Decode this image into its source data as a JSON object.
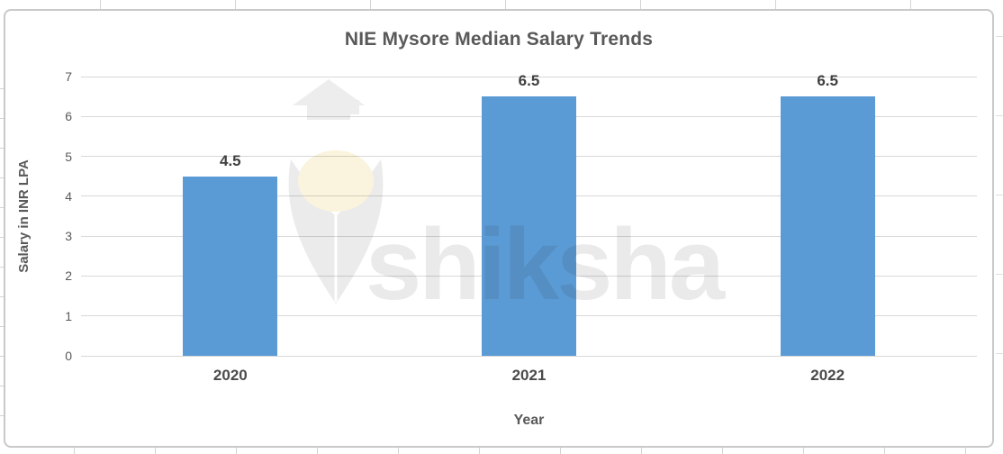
{
  "chart_data": {
    "type": "bar",
    "title": "NIE Mysore Median Salary Trends",
    "categories": [
      "2020",
      "2021",
      "2022"
    ],
    "values": [
      4.5,
      6.5,
      6.5
    ],
    "data_labels": [
      "4.5",
      "6.5",
      "6.5"
    ],
    "xlabel": "Year",
    "ylabel": "Salary in INR LPA",
    "ylim": [
      0,
      7
    ],
    "ytick_step": 1,
    "yticks": [
      "0",
      "1",
      "2",
      "3",
      "4",
      "5",
      "6",
      "7"
    ],
    "grid": true,
    "legend": "none",
    "bar_color": "#5B9BD5"
  },
  "watermark": {
    "text": "shiksha"
  },
  "colors": {
    "bar": "#5B9BD5",
    "title_text": "#595959",
    "axis_text": "#595959",
    "data_label_text": "#3f3f3f",
    "gridline": "#d8d8d8",
    "frame_border": "#c9c9c9",
    "watermark_gray": "#eaeaea",
    "watermark_glow": "#faf3dd",
    "background": "#ffffff"
  }
}
